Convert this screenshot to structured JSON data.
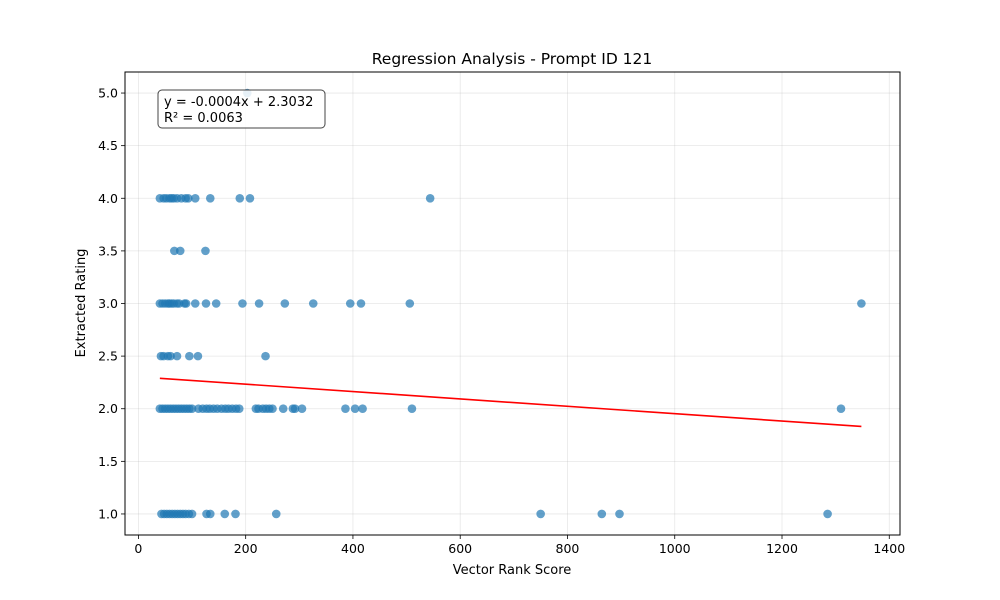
{
  "chart_data": {
    "type": "scatter",
    "title": "Regression Analysis - Prompt ID 121",
    "xlabel": "Vector Rank Score",
    "ylabel": "Extracted Rating",
    "xlim": [
      -25,
      1420
    ],
    "ylim": [
      0.8,
      5.2
    ],
    "xticks": [
      0,
      200,
      400,
      600,
      800,
      1000,
      1200,
      1400
    ],
    "yticks": [
      1.0,
      1.5,
      2.0,
      2.5,
      3.0,
      3.5,
      4.0,
      4.5,
      5.0
    ],
    "grid": true,
    "point_color": "#1f77b4",
    "line_color": "#ff0000",
    "annotation": {
      "line1": "y = -0.0004x + 2.3032",
      "line2": "R² = 0.0063"
    },
    "regression": {
      "slope": -0.00035,
      "intercept": 2.3032,
      "x_range": [
        40,
        1348
      ]
    },
    "points": [
      {
        "x": 203,
        "y": 5.0
      },
      {
        "x": 40,
        "y": 4.0
      },
      {
        "x": 47,
        "y": 4.0
      },
      {
        "x": 52,
        "y": 4.0
      },
      {
        "x": 58,
        "y": 4.0
      },
      {
        "x": 62,
        "y": 4.0
      },
      {
        "x": 66,
        "y": 4.0
      },
      {
        "x": 72,
        "y": 4.0
      },
      {
        "x": 80,
        "y": 4.0
      },
      {
        "x": 88,
        "y": 4.0
      },
      {
        "x": 93,
        "y": 4.0
      },
      {
        "x": 106,
        "y": 4.0
      },
      {
        "x": 134,
        "y": 4.0
      },
      {
        "x": 189,
        "y": 4.0
      },
      {
        "x": 208,
        "y": 4.0
      },
      {
        "x": 544,
        "y": 4.0
      },
      {
        "x": 67,
        "y": 3.5
      },
      {
        "x": 78,
        "y": 3.5
      },
      {
        "x": 125,
        "y": 3.5
      },
      {
        "x": 40,
        "y": 3.0
      },
      {
        "x": 45,
        "y": 3.0
      },
      {
        "x": 50,
        "y": 3.0
      },
      {
        "x": 55,
        "y": 3.0
      },
      {
        "x": 58,
        "y": 3.0
      },
      {
        "x": 62,
        "y": 3.0
      },
      {
        "x": 66,
        "y": 3.0
      },
      {
        "x": 72,
        "y": 3.0
      },
      {
        "x": 76,
        "y": 3.0
      },
      {
        "x": 86,
        "y": 3.0
      },
      {
        "x": 89,
        "y": 3.0
      },
      {
        "x": 106,
        "y": 3.0
      },
      {
        "x": 126,
        "y": 3.0
      },
      {
        "x": 145,
        "y": 3.0
      },
      {
        "x": 194,
        "y": 3.0
      },
      {
        "x": 225,
        "y": 3.0
      },
      {
        "x": 273,
        "y": 3.0
      },
      {
        "x": 326,
        "y": 3.0
      },
      {
        "x": 395,
        "y": 3.0
      },
      {
        "x": 415,
        "y": 3.0
      },
      {
        "x": 506,
        "y": 3.0
      },
      {
        "x": 1348,
        "y": 3.0
      },
      {
        "x": 42,
        "y": 2.5
      },
      {
        "x": 47,
        "y": 2.5
      },
      {
        "x": 55,
        "y": 2.5
      },
      {
        "x": 60,
        "y": 2.5
      },
      {
        "x": 72,
        "y": 2.5
      },
      {
        "x": 95,
        "y": 2.5
      },
      {
        "x": 111,
        "y": 2.5
      },
      {
        "x": 237,
        "y": 2.5
      },
      {
        "x": 40,
        "y": 2.0
      },
      {
        "x": 45,
        "y": 2.0
      },
      {
        "x": 50,
        "y": 2.0
      },
      {
        "x": 55,
        "y": 2.0
      },
      {
        "x": 60,
        "y": 2.0
      },
      {
        "x": 65,
        "y": 2.0
      },
      {
        "x": 70,
        "y": 2.0
      },
      {
        "x": 75,
        "y": 2.0
      },
      {
        "x": 80,
        "y": 2.0
      },
      {
        "x": 85,
        "y": 2.0
      },
      {
        "x": 90,
        "y": 2.0
      },
      {
        "x": 95,
        "y": 2.0
      },
      {
        "x": 100,
        "y": 2.0
      },
      {
        "x": 112,
        "y": 2.0
      },
      {
        "x": 120,
        "y": 2.0
      },
      {
        "x": 127,
        "y": 2.0
      },
      {
        "x": 133,
        "y": 2.0
      },
      {
        "x": 140,
        "y": 2.0
      },
      {
        "x": 147,
        "y": 2.0
      },
      {
        "x": 155,
        "y": 2.0
      },
      {
        "x": 162,
        "y": 2.0
      },
      {
        "x": 168,
        "y": 2.0
      },
      {
        "x": 175,
        "y": 2.0
      },
      {
        "x": 182,
        "y": 2.0
      },
      {
        "x": 188,
        "y": 2.0
      },
      {
        "x": 219,
        "y": 2.0
      },
      {
        "x": 224,
        "y": 2.0
      },
      {
        "x": 232,
        "y": 2.0
      },
      {
        "x": 238,
        "y": 2.0
      },
      {
        "x": 244,
        "y": 2.0
      },
      {
        "x": 250,
        "y": 2.0
      },
      {
        "x": 270,
        "y": 2.0
      },
      {
        "x": 288,
        "y": 2.0
      },
      {
        "x": 292,
        "y": 2.0
      },
      {
        "x": 305,
        "y": 2.0
      },
      {
        "x": 386,
        "y": 2.0
      },
      {
        "x": 404,
        "y": 2.0
      },
      {
        "x": 418,
        "y": 2.0
      },
      {
        "x": 510,
        "y": 2.0
      },
      {
        "x": 1310,
        "y": 2.0
      },
      {
        "x": 43,
        "y": 1.0
      },
      {
        "x": 48,
        "y": 1.0
      },
      {
        "x": 53,
        "y": 1.0
      },
      {
        "x": 58,
        "y": 1.0
      },
      {
        "x": 63,
        "y": 1.0
      },
      {
        "x": 68,
        "y": 1.0
      },
      {
        "x": 73,
        "y": 1.0
      },
      {
        "x": 78,
        "y": 1.0
      },
      {
        "x": 83,
        "y": 1.0
      },
      {
        "x": 88,
        "y": 1.0
      },
      {
        "x": 94,
        "y": 1.0
      },
      {
        "x": 100,
        "y": 1.0
      },
      {
        "x": 127,
        "y": 1.0
      },
      {
        "x": 134,
        "y": 1.0
      },
      {
        "x": 161,
        "y": 1.0
      },
      {
        "x": 181,
        "y": 1.0
      },
      {
        "x": 257,
        "y": 1.0
      },
      {
        "x": 750,
        "y": 1.0
      },
      {
        "x": 864,
        "y": 1.0
      },
      {
        "x": 897,
        "y": 1.0
      },
      {
        "x": 1285,
        "y": 1.0
      }
    ]
  }
}
